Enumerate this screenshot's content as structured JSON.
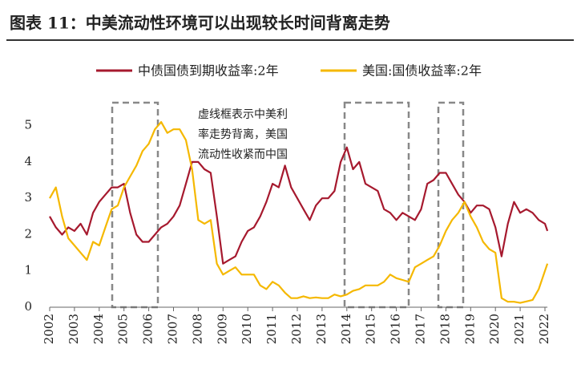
{
  "chart_data": {
    "type": "line",
    "title": "图表 11：中美流动性环境可以出现较长时间背离走势",
    "annotations": [
      "虚线框表示中美利",
      "率走势背离，美国",
      "流动性收紧而中国"
    ],
    "x": [
      2002.0,
      2002.25,
      2002.5,
      2002.75,
      2003.0,
      2003.25,
      2003.5,
      2003.75,
      2004.0,
      2004.25,
      2004.5,
      2004.75,
      2005.0,
      2005.25,
      2005.5,
      2005.75,
      2006.0,
      2006.25,
      2006.5,
      2006.75,
      2007.0,
      2007.25,
      2007.5,
      2007.75,
      2008.0,
      2008.25,
      2008.5,
      2008.75,
      2009.0,
      2009.25,
      2009.5,
      2009.75,
      2010.0,
      2010.25,
      2010.5,
      2010.75,
      2011.0,
      2011.25,
      2011.5,
      2011.75,
      2012.0,
      2012.25,
      2012.5,
      2012.75,
      2013.0,
      2013.25,
      2013.5,
      2013.75,
      2014.0,
      2014.25,
      2014.5,
      2014.75,
      2015.0,
      2015.25,
      2015.5,
      2015.75,
      2016.0,
      2016.25,
      2016.5,
      2016.75,
      2017.0,
      2017.25,
      2017.5,
      2017.75,
      2018.0,
      2018.25,
      2018.5,
      2018.75,
      2019.0,
      2019.25,
      2019.5,
      2019.75,
      2020.0,
      2020.25,
      2020.5,
      2020.75,
      2021.0,
      2021.25,
      2021.5,
      2021.75,
      2022.0,
      2022.1
    ],
    "series": [
      {
        "name": "中债国债到期收益率:2年",
        "color": "#a6192e",
        "values": [
          2.5,
          2.2,
          2.0,
          2.2,
          2.1,
          2.3,
          2.0,
          2.6,
          2.9,
          3.1,
          3.3,
          3.3,
          3.4,
          2.6,
          2.0,
          1.8,
          1.8,
          2.0,
          2.2,
          2.3,
          2.5,
          2.8,
          3.4,
          4.0,
          4.0,
          3.8,
          3.7,
          2.5,
          1.2,
          1.3,
          1.4,
          1.8,
          2.1,
          2.2,
          2.5,
          2.9,
          3.4,
          3.3,
          3.9,
          3.3,
          3.0,
          2.7,
          2.4,
          2.8,
          3.0,
          3.0,
          3.2,
          4.0,
          4.4,
          3.8,
          4.0,
          3.4,
          3.3,
          3.2,
          2.7,
          2.6,
          2.4,
          2.6,
          2.5,
          2.4,
          2.7,
          3.4,
          3.5,
          3.7,
          3.7,
          3.4,
          3.1,
          2.9,
          2.6,
          2.8,
          2.8,
          2.7,
          2.2,
          1.4,
          2.3,
          2.9,
          2.6,
          2.7,
          2.6,
          2.4,
          2.3,
          2.1
        ]
      },
      {
        "name": "美国:国债收益率:2年",
        "color": "#f5b800",
        "values": [
          3.0,
          3.3,
          2.5,
          1.9,
          1.7,
          1.5,
          1.3,
          1.8,
          1.7,
          2.2,
          2.7,
          2.8,
          3.3,
          3.6,
          3.9,
          4.3,
          4.5,
          4.9,
          5.1,
          4.8,
          4.9,
          4.9,
          4.6,
          3.8,
          2.4,
          2.3,
          2.4,
          1.2,
          0.9,
          1.0,
          1.1,
          0.9,
          0.9,
          0.9,
          0.6,
          0.5,
          0.7,
          0.6,
          0.4,
          0.25,
          0.25,
          0.3,
          0.25,
          0.27,
          0.25,
          0.25,
          0.35,
          0.3,
          0.35,
          0.45,
          0.5,
          0.6,
          0.6,
          0.6,
          0.7,
          0.9,
          0.8,
          0.75,
          0.7,
          1.1,
          1.2,
          1.3,
          1.4,
          1.7,
          2.1,
          2.4,
          2.6,
          2.9,
          2.5,
          2.2,
          1.8,
          1.6,
          1.5,
          0.25,
          0.15,
          0.15,
          0.12,
          0.16,
          0.2,
          0.5,
          1.0,
          1.2
        ]
      }
    ],
    "xlim": [
      2002,
      2022.1
    ],
    "xticks": [
      2002,
      2003,
      2004,
      2005,
      2006,
      2007,
      2008,
      2009,
      2010,
      2011,
      2012,
      2013,
      2014,
      2015,
      2016,
      2017,
      2018,
      2019,
      2020,
      2021,
      2022
    ],
    "ylim": [
      0,
      5.5
    ],
    "yticks": [
      0,
      1,
      2,
      3,
      4,
      5
    ]
  }
}
